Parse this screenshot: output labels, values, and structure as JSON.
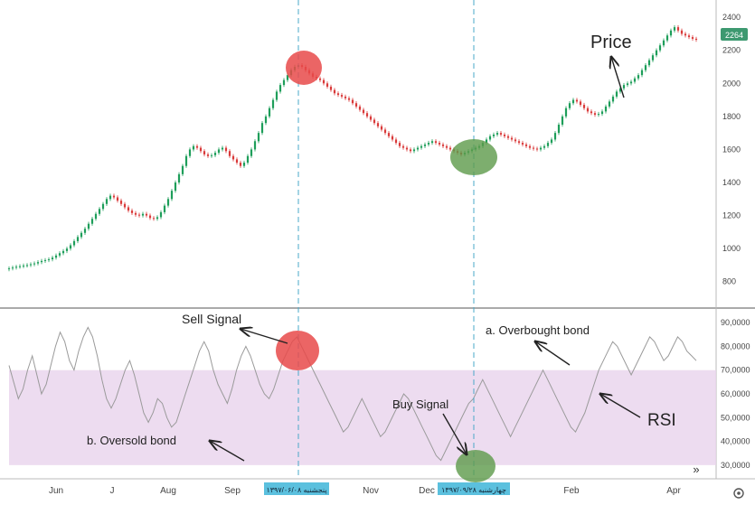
{
  "chart_data": [
    {
      "type": "candlestick",
      "panel": "price",
      "ylim": [
        700,
        2450
      ],
      "y_ticks": [
        800,
        1000,
        1200,
        1400,
        1600,
        1800,
        2000,
        2200,
        2400
      ],
      "current_value_label": "2264",
      "annotations": {
        "price": "Price"
      },
      "colors": {
        "up": "#1e9e5a",
        "down": "#d93a3a",
        "last_value_badge": "#3d9970"
      },
      "values": [
        880,
        885,
        890,
        893,
        897,
        900,
        905,
        910,
        918,
        925,
        930,
        935,
        945,
        958,
        972,
        985,
        1000,
        1020,
        1045,
        1070,
        1095,
        1120,
        1150,
        1180,
        1210,
        1240,
        1270,
        1300,
        1320,
        1310,
        1290,
        1270,
        1250,
        1230,
        1215,
        1205,
        1200,
        1210,
        1200,
        1185,
        1180,
        1190,
        1220,
        1260,
        1300,
        1350,
        1400,
        1450,
        1500,
        1560,
        1600,
        1620,
        1610,
        1590,
        1570,
        1560,
        1565,
        1580,
        1600,
        1610,
        1590,
        1560,
        1540,
        1520,
        1500,
        1520,
        1560,
        1600,
        1650,
        1700,
        1760,
        1800,
        1850,
        1900,
        1950,
        1990,
        2020,
        2050,
        2080,
        2100,
        2110,
        2100,
        2080,
        2060,
        2040,
        2030,
        2020,
        2000,
        1980,
        1960,
        1940,
        1930,
        1920,
        1910,
        1900,
        1880,
        1860,
        1840,
        1820,
        1800,
        1780,
        1760,
        1740,
        1720,
        1700,
        1680,
        1660,
        1640,
        1620,
        1610,
        1600,
        1590,
        1600,
        1610,
        1620,
        1630,
        1640,
        1650,
        1640,
        1630,
        1620,
        1610,
        1600,
        1590,
        1580,
        1570,
        1580,
        1590,
        1600,
        1610,
        1620,
        1640,
        1660,
        1680,
        1690,
        1700,
        1690,
        1680,
        1670,
        1660,
        1650,
        1640,
        1630,
        1620,
        1610,
        1605,
        1600,
        1610,
        1620,
        1640,
        1660,
        1700,
        1750,
        1800,
        1850,
        1880,
        1900,
        1890,
        1870,
        1850,
        1830,
        1820,
        1810,
        1815,
        1830,
        1860,
        1890,
        1920,
        1950,
        1970,
        1990,
        2000,
        2010,
        2030,
        2050,
        2080,
        2110,
        2140,
        2170,
        2200,
        2230,
        2260,
        2290,
        2320,
        2340,
        2320,
        2300,
        2290,
        2280,
        2270,
        2264
      ]
    },
    {
      "type": "line",
      "panel": "RSI",
      "ylim": [
        25000,
        95000
      ],
      "y_ticks": [
        30000,
        40000,
        50000,
        60000,
        70000,
        80000,
        90000
      ],
      "y_tick_labels": [
        "30,0000",
        "40,0000",
        "50,0000",
        "60,0000",
        "70,0000",
        "80,0000",
        "90,0000"
      ],
      "band": [
        30000,
        70000
      ],
      "colors": {
        "band": "#e8d3ec",
        "line": "#9a9a9a",
        "axis": "#555555"
      },
      "values": [
        72000,
        65000,
        58000,
        62000,
        70000,
        76000,
        68000,
        60000,
        64000,
        72000,
        80000,
        86000,
        82000,
        74000,
        70000,
        78000,
        84000,
        88000,
        84000,
        76000,
        66000,
        58000,
        54000,
        58000,
        64000,
        70000,
        74000,
        68000,
        60000,
        52000,
        48000,
        52000,
        58000,
        56000,
        50000,
        46000,
        48000,
        54000,
        60000,
        66000,
        72000,
        78000,
        82000,
        78000,
        70000,
        64000,
        60000,
        56000,
        62000,
        70000,
        76000,
        80000,
        76000,
        70000,
        64000,
        60000,
        58000,
        62000,
        68000,
        74000,
        78000,
        82000,
        84000,
        80000,
        76000,
        72000,
        68000,
        64000,
        60000,
        56000,
        52000,
        48000,
        44000,
        46000,
        50000,
        54000,
        58000,
        54000,
        50000,
        46000,
        42000,
        44000,
        48000,
        52000,
        56000,
        60000,
        58000,
        54000,
        50000,
        46000,
        42000,
        38000,
        34000,
        32000,
        36000,
        40000,
        44000,
        48000,
        52000,
        56000,
        58000,
        62000,
        66000,
        62000,
        58000,
        54000,
        50000,
        46000,
        42000,
        46000,
        50000,
        54000,
        58000,
        62000,
        66000,
        70000,
        66000,
        62000,
        58000,
        54000,
        50000,
        46000,
        44000,
        48000,
        52000,
        58000,
        64000,
        70000,
        74000,
        78000,
        82000,
        80000,
        76000,
        72000,
        68000,
        72000,
        76000,
        80000,
        84000,
        82000,
        78000,
        74000,
        76000,
        80000,
        84000,
        82000,
        78000,
        76000,
        74000
      ],
      "annotations": {
        "sell": "Sell Signal",
        "buy": "Buy Signal",
        "overbought": "a. Overbought bond",
        "oversold": "b. Oversold bond",
        "rsi": "RSI"
      }
    }
  ],
  "x_axis": {
    "tick_labels": [
      "Jun",
      "J",
      "Aug",
      "Sep",
      "Nov",
      "Dec",
      "Feb",
      "Apr"
    ],
    "date_badges": [
      "پنجشنبه ۱۳۹۷/۰۶/۰۸",
      "چهارشنبه ۱۳۹۷/۰۹/۲۸"
    ]
  },
  "ui": {
    "scroll_icon": "»",
    "settings_icon": "gear-icon"
  }
}
